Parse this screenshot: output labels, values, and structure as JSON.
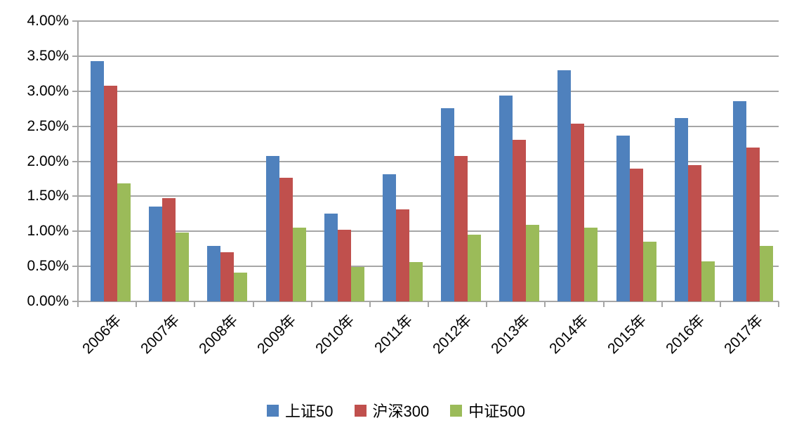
{
  "chart_data": {
    "type": "bar",
    "title": "",
    "xlabel": "",
    "ylabel": "",
    "categories": [
      "2006年",
      "2007年",
      "2008年",
      "2009年",
      "2010年",
      "2011年",
      "2012年",
      "2013年",
      "2014年",
      "2015年",
      "2016年",
      "2017年"
    ],
    "series": [
      {
        "name": "上证50",
        "color": "#4F81BD",
        "values": [
          3.43,
          1.35,
          0.79,
          2.08,
          1.25,
          1.81,
          2.76,
          2.94,
          3.3,
          2.37,
          2.62,
          2.86
        ]
      },
      {
        "name": "沪深300",
        "color": "#C0504D",
        "values": [
          3.08,
          1.47,
          0.7,
          1.76,
          1.02,
          1.31,
          2.08,
          2.31,
          2.54,
          1.89,
          1.94,
          2.2
        ]
      },
      {
        "name": "中证500",
        "color": "#9BBB59",
        "values": [
          1.68,
          0.98,
          0.41,
          1.05,
          0.49,
          0.56,
          0.95,
          1.09,
          1.05,
          0.85,
          0.57,
          0.79
        ]
      }
    ],
    "y_axis": {
      "min": 0,
      "max": 4,
      "step": 0.5,
      "tick_labels": [
        "0.00%",
        "0.50%",
        "1.00%",
        "1.50%",
        "2.00%",
        "2.50%",
        "3.00%",
        "3.50%",
        "4.00%"
      ]
    },
    "legend_position": "bottom",
    "grid": true,
    "colors": {
      "gridline": "#A6A6A6",
      "axis": "#A6A6A6",
      "text": "#000000",
      "background": "#FFFFFF"
    }
  }
}
